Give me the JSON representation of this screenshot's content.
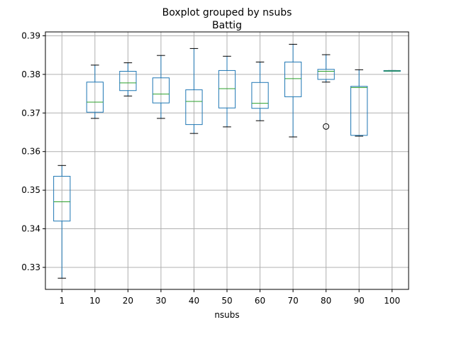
{
  "chart_data": {
    "type": "boxplot",
    "title": "Boxplot grouped by nsubs",
    "subtitle": "Battig",
    "xlabel": "nsubs",
    "ylabel": "",
    "ylim": [
      0.3243,
      0.391
    ],
    "yticks": [
      0.33,
      0.34,
      0.35,
      0.36,
      0.37,
      0.38,
      0.39
    ],
    "ytick_labels": [
      "0.33",
      "0.34",
      "0.35",
      "0.36",
      "0.37",
      "0.38",
      "0.39"
    ],
    "grid": true,
    "categories": [
      "1",
      "10",
      "20",
      "30",
      "40",
      "50",
      "60",
      "70",
      "80",
      "90",
      "100"
    ],
    "boxes": [
      {
        "whisker_low": 0.3272,
        "q1": 0.342,
        "median": 0.347,
        "q3": 0.3536,
        "whisker_high": 0.3564,
        "outliers": []
      },
      {
        "whisker_low": 0.3686,
        "q1": 0.3702,
        "median": 0.3728,
        "q3": 0.378,
        "whisker_high": 0.3824,
        "outliers": []
      },
      {
        "whisker_low": 0.3744,
        "q1": 0.3758,
        "median": 0.3778,
        "q3": 0.3808,
        "whisker_high": 0.383,
        "outliers": []
      },
      {
        "whisker_low": 0.3686,
        "q1": 0.3726,
        "median": 0.3749,
        "q3": 0.3791,
        "whisker_high": 0.3849,
        "outliers": []
      },
      {
        "whisker_low": 0.3647,
        "q1": 0.367,
        "median": 0.373,
        "q3": 0.376,
        "whisker_high": 0.3867,
        "outliers": []
      },
      {
        "whisker_low": 0.3664,
        "q1": 0.3713,
        "median": 0.3763,
        "q3": 0.381,
        "whisker_high": 0.3847,
        "outliers": []
      },
      {
        "whisker_low": 0.368,
        "q1": 0.3712,
        "median": 0.3725,
        "q3": 0.3779,
        "whisker_high": 0.3832,
        "outliers": []
      },
      {
        "whisker_low": 0.3638,
        "q1": 0.3742,
        "median": 0.3789,
        "q3": 0.3832,
        "whisker_high": 0.3878,
        "outliers": []
      },
      {
        "whisker_low": 0.378,
        "q1": 0.3787,
        "median": 0.3808,
        "q3": 0.3813,
        "whisker_high": 0.3851,
        "outliers": [
          0.3665
        ]
      },
      {
        "whisker_low": 0.364,
        "q1": 0.3642,
        "median": 0.3766,
        "q3": 0.3769,
        "whisker_high": 0.3812,
        "outliers": []
      },
      {
        "whisker_low": 0.3808,
        "q1": 0.3808,
        "median": 0.3809,
        "q3": 0.381,
        "whisker_high": 0.381,
        "outliers": []
      }
    ],
    "colors": {
      "box": "#1f77b4",
      "whisker": "#1f77b4",
      "cap": "#000000",
      "median": "#2ca02c",
      "grid": "#b0b0b0",
      "outlier": "#000000"
    }
  }
}
